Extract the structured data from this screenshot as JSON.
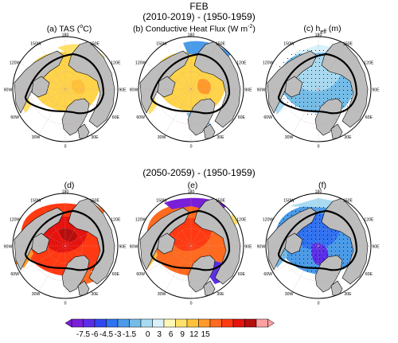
{
  "header": {
    "month": "FEB",
    "period1": "(2010-2019) - (1950-1959)",
    "period2": "(2050-2059) - (1950-1959)"
  },
  "panels": [
    {
      "id": "a",
      "title": "(a) TAS (°C)",
      "pattern": "tas1"
    },
    {
      "id": "b",
      "title": "(b) Conductive Heat Flux (W m⁻²)",
      "pattern": "flux1"
    },
    {
      "id": "c",
      "title": "(c) h_eff (m)",
      "pattern": "heff1"
    },
    {
      "id": "d",
      "title": "(d)",
      "pattern": "tas2"
    },
    {
      "id": "e",
      "title": "(e)",
      "pattern": "flux2"
    },
    {
      "id": "f",
      "title": "(f)",
      "pattern": "heff2"
    }
  ],
  "map_labels": {
    "top": "180",
    "upper_left": "150W",
    "upper_right": "150E",
    "left_top": "120W",
    "right_top": "120E",
    "left_mid": "90W",
    "right_mid": "90E",
    "left_bot": "60W",
    "right_bot": "60E",
    "lower_left": "30W",
    "lower_right": "30E",
    "bottom": "0"
  },
  "chart_data": {
    "type": "heatmap",
    "description_free": false,
    "colorbar": {
      "tick_labels": [
        "-7.5",
        "-6",
        "-4.5",
        "-3",
        "-1.5",
        "0",
        "3",
        "6",
        "9",
        "12",
        "15"
      ],
      "colors": [
        "#7a1fd8",
        "#5a2ee8",
        "#2f47f0",
        "#2f72f2",
        "#4a9be8",
        "#74bde8",
        "#a8dbf2",
        "#d8f1fa",
        "#fff7b5",
        "#ffe16a",
        "#ffc23a",
        "#ff9a2a",
        "#ff6a20",
        "#ff3a12",
        "#e5120e",
        "#b50e0e",
        "#ffa0a0"
      ]
    },
    "panels": [
      "(a)",
      "(b)",
      "(c)",
      "(d)",
      "(e)",
      "(f)"
    ]
  }
}
